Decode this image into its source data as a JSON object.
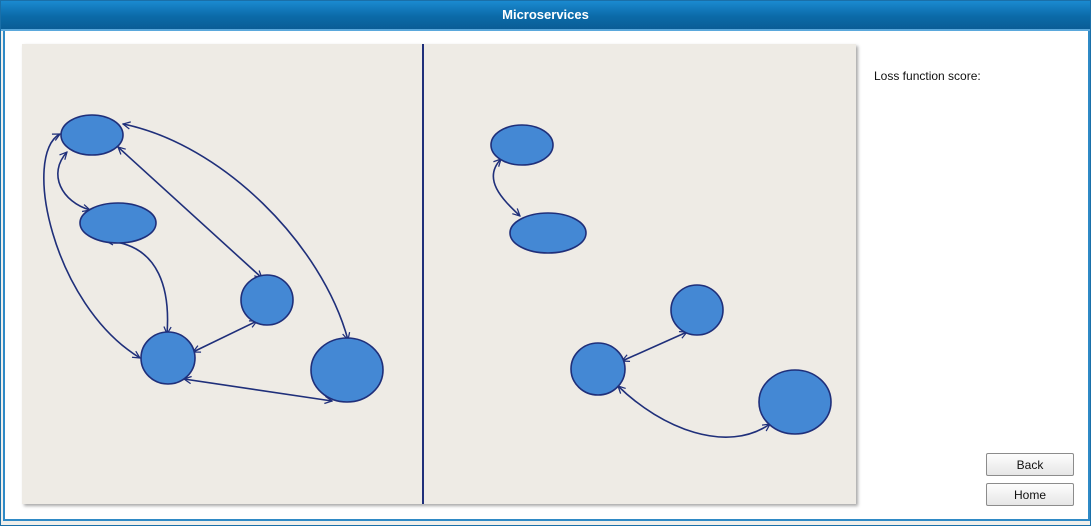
{
  "window": {
    "title": "Microservices"
  },
  "sidebar": {
    "loss_label": "Loss function score:",
    "back_label": "Back",
    "home_label": "Home"
  },
  "colors": {
    "node_fill": "#4488d4",
    "node_stroke": "#1f2f7a",
    "edge": "#1f2f7a",
    "divider": "#1f2f7a",
    "canvas_bg": "#eeebe5"
  },
  "graphs": {
    "left": {
      "nodes": [
        "a",
        "b",
        "c",
        "d",
        "e"
      ],
      "edges": [
        {
          "from": "a",
          "to": "b",
          "dir": "both"
        },
        {
          "from": "a",
          "to": "c",
          "dir": "both"
        },
        {
          "from": "a",
          "to": "e",
          "dir": "both"
        },
        {
          "from": "a",
          "to": "d",
          "dir": "both"
        },
        {
          "from": "b",
          "to": "d",
          "dir": "both"
        },
        {
          "from": "c",
          "to": "d",
          "dir": "both"
        },
        {
          "from": "d",
          "to": "e",
          "dir": "both"
        }
      ]
    },
    "right": {
      "nodes": [
        "f",
        "g",
        "h",
        "i",
        "j"
      ],
      "edges": [
        {
          "from": "f",
          "to": "g",
          "dir": "both"
        },
        {
          "from": "h",
          "to": "i",
          "dir": "both"
        },
        {
          "from": "i",
          "to": "j",
          "dir": "both"
        }
      ]
    }
  }
}
